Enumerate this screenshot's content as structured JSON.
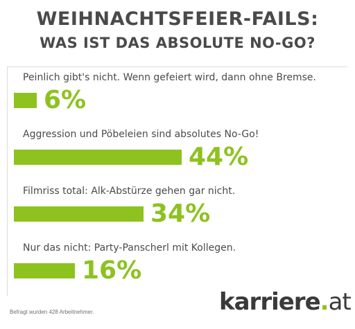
{
  "title_line1": "WEIHNACHTSFEIER-FAILS:",
  "title_line2": "WAS IST DAS ABSOLUTE NO-GO?",
  "chart_data": {
    "type": "bar",
    "orientation": "horizontal",
    "categories": [
      "Peinlich gibt's nicht. Wenn gefeiert wird, dann ohne Bremse.",
      "Aggression und Pöbeleien sind absolutes No-Go!",
      "Filmriss total: Alk-Abstürze gehen gar nicht.",
      "Nur das nicht: Party-Panscherl mit Kollegen."
    ],
    "values": [
      6,
      44,
      34,
      16
    ],
    "value_labels": [
      "6%",
      "44%",
      "34%",
      "16%"
    ],
    "unit": "%",
    "color": "#8dc21f",
    "title": "WEIHNACHTSFEIER-FAILS: WAS IST DAS ABSOLUTE NO-GO?"
  },
  "footnote": "Befragt wurden 428 Arbeitnehmer.",
  "logo": {
    "main": "karriere",
    "dot": ".",
    "tld": "at",
    "accent": "#8dc21f"
  }
}
